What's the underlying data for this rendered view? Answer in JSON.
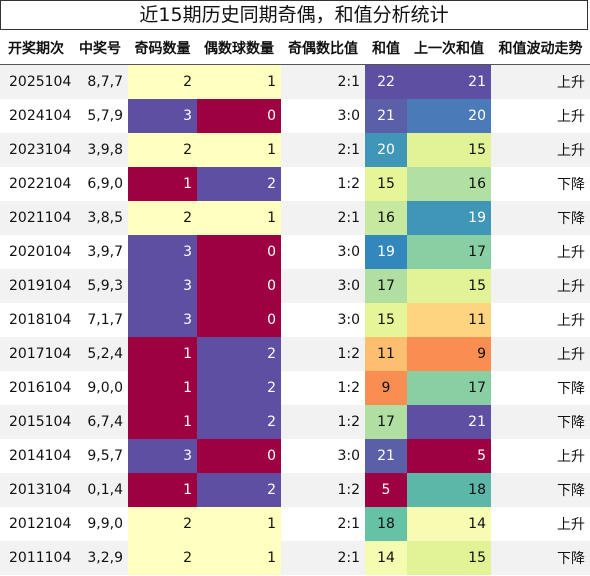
{
  "title": "近15期历史同期奇偶，和值分析统计",
  "columns": [
    "开奖期次",
    "中奖号",
    "奇码数量",
    "偶数球数量",
    "奇偶数比值",
    "和值",
    "上一次和值",
    "和值波动走势"
  ],
  "rows": [
    {
      "period": "2025104",
      "numbers": "8,7,7",
      "odd": 2,
      "even": 1,
      "ratio": "2:1",
      "sum": 22,
      "prev_sum": 21,
      "trend": "上升"
    },
    {
      "period": "2024104",
      "numbers": "5,7,9",
      "odd": 3,
      "even": 0,
      "ratio": "3:0",
      "sum": 21,
      "prev_sum": 20,
      "trend": "上升"
    },
    {
      "period": "2023104",
      "numbers": "3,9,8",
      "odd": 2,
      "even": 1,
      "ratio": "2:1",
      "sum": 20,
      "prev_sum": 15,
      "trend": "上升"
    },
    {
      "period": "2022104",
      "numbers": "6,9,0",
      "odd": 1,
      "even": 2,
      "ratio": "1:2",
      "sum": 15,
      "prev_sum": 16,
      "trend": "下降"
    },
    {
      "period": "2021104",
      "numbers": "3,8,5",
      "odd": 2,
      "even": 1,
      "ratio": "2:1",
      "sum": 16,
      "prev_sum": 19,
      "trend": "下降"
    },
    {
      "period": "2020104",
      "numbers": "3,9,7",
      "odd": 3,
      "even": 0,
      "ratio": "3:0",
      "sum": 19,
      "prev_sum": 17,
      "trend": "上升"
    },
    {
      "period": "2019104",
      "numbers": "5,9,3",
      "odd": 3,
      "even": 0,
      "ratio": "3:0",
      "sum": 17,
      "prev_sum": 15,
      "trend": "上升"
    },
    {
      "period": "2018104",
      "numbers": "7,1,7",
      "odd": 3,
      "even": 0,
      "ratio": "3:0",
      "sum": 15,
      "prev_sum": 11,
      "trend": "上升"
    },
    {
      "period": "2017104",
      "numbers": "5,2,4",
      "odd": 1,
      "even": 2,
      "ratio": "1:2",
      "sum": 11,
      "prev_sum": 9,
      "trend": "上升"
    },
    {
      "period": "2016104",
      "numbers": "9,0,0",
      "odd": 1,
      "even": 2,
      "ratio": "1:2",
      "sum": 9,
      "prev_sum": 17,
      "trend": "下降"
    },
    {
      "period": "2015104",
      "numbers": "6,7,4",
      "odd": 1,
      "even": 2,
      "ratio": "1:2",
      "sum": 17,
      "prev_sum": 21,
      "trend": "下降"
    },
    {
      "period": "2014104",
      "numbers": "9,5,7",
      "odd": 3,
      "even": 0,
      "ratio": "3:0",
      "sum": 21,
      "prev_sum": 5,
      "trend": "上升"
    },
    {
      "period": "2013104",
      "numbers": "0,1,4",
      "odd": 1,
      "even": 2,
      "ratio": "1:2",
      "sum": 5,
      "prev_sum": 18,
      "trend": "下降"
    },
    {
      "period": "2012104",
      "numbers": "9,9,0",
      "odd": 2,
      "even": 1,
      "ratio": "2:1",
      "sum": 18,
      "prev_sum": 14,
      "trend": "上升"
    },
    {
      "period": "2011104",
      "numbers": "3,2,9",
      "odd": 2,
      "even": 1,
      "ratio": "2:1",
      "sum": 14,
      "prev_sum": 15,
      "trend": "下降"
    }
  ],
  "count_colors": {
    "0": "#9e0142",
    "1": "#9e0142",
    "2": "#ffffbf",
    "3": "#5e4fa2"
  },
  "even_colors": {
    "0": "#9e0142",
    "1": "#ffffbf",
    "2": "#5e4fa2"
  },
  "sum_colors": {
    "5": "#9e0142",
    "9": "#f98e52",
    "11": "#fdbe6f",
    "14": "#f5fbb1",
    "15": "#e6f598",
    "16": "#c7e89f",
    "17": "#b0dfa1",
    "18": "#66c2a5",
    "19": "#3288bd",
    "20": "#3f96b7",
    "21": "#5b5fa8",
    "22": "#5e4fa2"
  },
  "prev_colors": {
    "5": "#9e0142",
    "9": "#f98e52",
    "11": "#fed480",
    "14": "#f7fcb2",
    "15": "#e2f397",
    "16": "#b2e0a2",
    "17": "#89cfa4",
    "18": "#5cb7a9",
    "19": "#3f96b7",
    "20": "#4a7ab8",
    "21": "#5e4fa2"
  }
}
